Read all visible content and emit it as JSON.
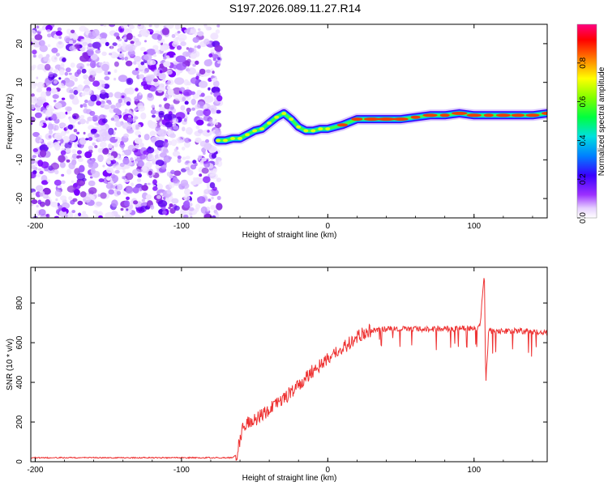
{
  "title": "S197.2026.089.11.27.R14",
  "chart_data": [
    {
      "type": "heatmap",
      "xlabel": "Height of straight line (km)",
      "ylabel": "Frequency (Hz)",
      "xlim": [
        -203,
        150
      ],
      "ylim": [
        -25,
        25
      ],
      "xticks": [
        -200,
        -100,
        0,
        100
      ],
      "yticks": [
        -20,
        -10,
        0,
        10,
        20
      ],
      "xtick_labels": [
        "-200",
        "-100",
        "0",
        "100"
      ],
      "ytick_labels": [
        "-20",
        "-10",
        "0",
        "10",
        "20"
      ],
      "noise_region_x": [
        -203,
        -74
      ],
      "ridge": {
        "x": [
          -75,
          -70,
          -65,
          -60,
          -55,
          -50,
          -45,
          -40,
          -35,
          -30,
          -25,
          -20,
          -15,
          -10,
          -5,
          0,
          10,
          20,
          30,
          40,
          50,
          60,
          70,
          80,
          90,
          100,
          110,
          120,
          130,
          140,
          150
        ],
        "y": [
          -5,
          -5,
          -4.5,
          -4.5,
          -3.5,
          -2.5,
          -2,
          -0.5,
          1,
          2,
          0.5,
          -1.5,
          -2.5,
          -2.5,
          -2,
          -2,
          -1,
          0.5,
          0.5,
          0.5,
          0.5,
          1,
          1.5,
          1.5,
          2,
          1.5,
          1.5,
          1.5,
          1.5,
          1.5,
          2
        ]
      },
      "colorbar": {
        "label": "Normalized spectral amplitude",
        "range": [
          0,
          1
        ],
        "ticks": [
          0,
          0.2,
          0.4,
          0.6,
          0.8
        ],
        "tick_labels": [
          "0.0",
          "0.2",
          "0.4",
          "0.6",
          "0.8"
        ],
        "colormap": "gist_rainbow_r"
      }
    },
    {
      "type": "line",
      "xlabel": "Height of straight line (km)",
      "ylabel": "SNR (10 * v/v)",
      "xlim": [
        -203,
        150
      ],
      "ylim": [
        0,
        980
      ],
      "xticks": [
        -200,
        -100,
        0,
        100
      ],
      "yticks": [
        0,
        200,
        400,
        600,
        800
      ],
      "xtick_labels": [
        "-200",
        "-100",
        "0",
        "100"
      ],
      "ytick_labels": [
        "0",
        "200",
        "400",
        "600",
        "800"
      ],
      "series": [
        {
          "name": "SNR",
          "color": "#ee3333",
          "x": [
            -203,
            -180,
            -150,
            -120,
            -90,
            -70,
            -65,
            -62,
            -58,
            -54,
            -50,
            -45,
            -40,
            -35,
            -30,
            -25,
            -20,
            -15,
            -10,
            -5,
            0,
            5,
            10,
            15,
            20,
            25,
            30,
            40,
            50,
            60,
            70,
            80,
            90,
            100,
            104,
            106,
            107,
            108,
            110,
            120,
            130,
            140,
            150
          ],
          "y": [
            20,
            20,
            20,
            20,
            20,
            20,
            20,
            40,
            180,
            200,
            210,
            240,
            260,
            290,
            320,
            350,
            380,
            420,
            460,
            490,
            520,
            550,
            570,
            600,
            630,
            650,
            660,
            670,
            670,
            670,
            670,
            670,
            670,
            670,
            680,
            850,
            960,
            400,
            660,
            660,
            660,
            655,
            650
          ]
        }
      ],
      "spikes": [
        {
          "x": 106,
          "y": 960
        },
        {
          "x": 105,
          "y": 380
        }
      ]
    }
  ]
}
